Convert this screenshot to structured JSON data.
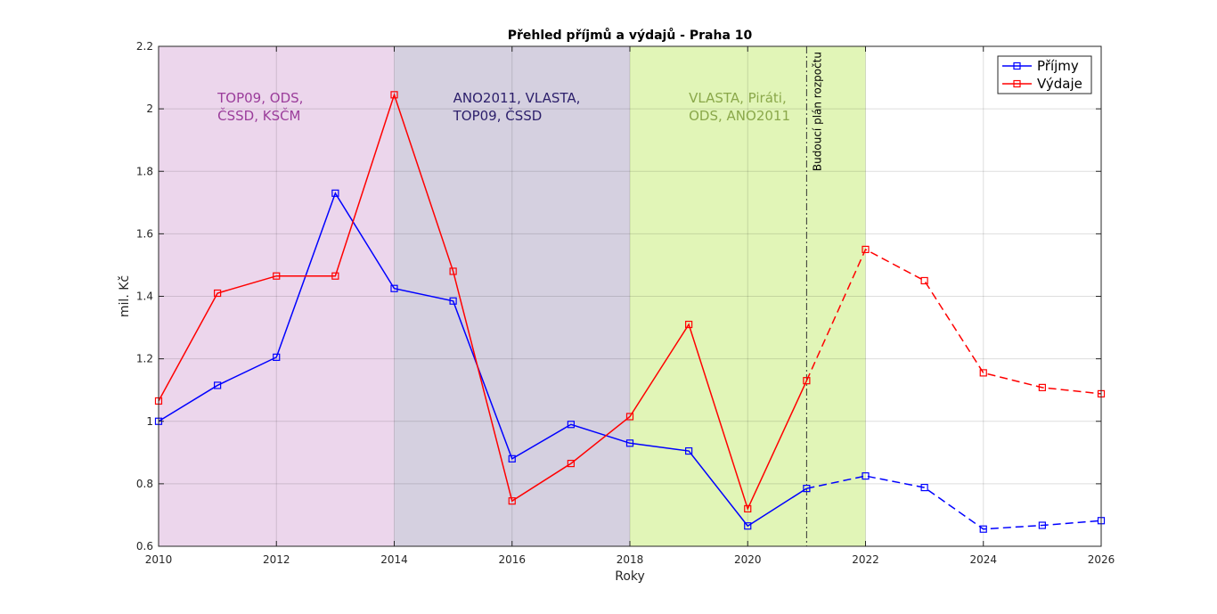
{
  "chart_data": {
    "type": "line",
    "title": "Přehled příjmů a výdajů - Praha 10",
    "xlabel": "Roky",
    "ylabel": "mil. Kč",
    "xlim": [
      2010,
      2026
    ],
    "ylim": [
      0.6,
      2.2
    ],
    "xticks": [
      2010,
      2012,
      2014,
      2016,
      2018,
      2020,
      2022,
      2024,
      2026
    ],
    "yticks": [
      0.6,
      0.8,
      1,
      1.2,
      1.4,
      1.6,
      1.8,
      2,
      2.2
    ],
    "ytick_labels": [
      "0.6",
      "0.8",
      "1",
      "1.2",
      "1.4",
      "1.6",
      "1.8",
      "2",
      "2.2"
    ],
    "grid": true,
    "legend_position": "top-right",
    "x": [
      2010,
      2011,
      2012,
      2013,
      2014,
      2015,
      2016,
      2017,
      2018,
      2019,
      2020,
      2021,
      2022,
      2023,
      2024,
      2025,
      2026
    ],
    "series": [
      {
        "name": "Příjmy",
        "color": "#0000ff",
        "values": [
          1.0,
          1.115,
          1.205,
          1.73,
          1.425,
          1.385,
          0.88,
          0.99,
          0.93,
          0.905,
          0.665,
          0.785,
          0.825,
          0.788,
          0.655,
          0.667,
          0.682
        ]
      },
      {
        "name": "Výdaje",
        "color": "#ff0000",
        "values": [
          1.065,
          1.41,
          1.465,
          1.465,
          2.045,
          1.48,
          0.745,
          0.865,
          1.015,
          1.31,
          0.72,
          1.13,
          1.55,
          1.45,
          1.155,
          1.108,
          1.088
        ]
      }
    ],
    "forecast_from": 2021,
    "regions": [
      {
        "x0": 2010,
        "x1": 2014,
        "color": "#ecd6ec",
        "label_lines": [
          "TOP09, ODS,",
          "ČSSD, KSČM"
        ],
        "label_color": "#9b3d9b",
        "label_x": 2011,
        "label_y": 2.02
      },
      {
        "x0": 2014,
        "x1": 2018,
        "color": "#d5d0e0",
        "label_lines": [
          "ANO2011, VLASTA,",
          "TOP09, ČSSD"
        ],
        "label_color": "#2c1f6b",
        "label_x": 2015,
        "label_y": 2.02
      },
      {
        "x0": 2018,
        "x1": 2022,
        "color": "#e1f5b7",
        "label_lines": [
          "VLASTA, Piráti,",
          "ODS, ANO2011"
        ],
        "label_color": "#8aa84a",
        "label_x": 2019,
        "label_y": 2.02
      }
    ],
    "vline": {
      "x": 2021,
      "label": "Budoucí plán rozpočtu"
    }
  }
}
